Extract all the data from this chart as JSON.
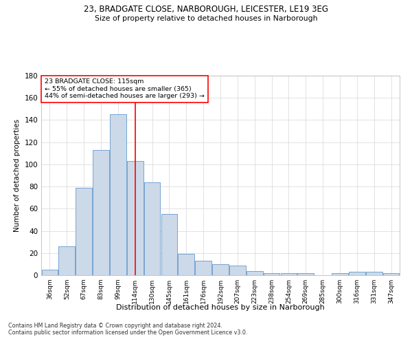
{
  "title1": "23, BRADGATE CLOSE, NARBOROUGH, LEICESTER, LE19 3EG",
  "title2": "Size of property relative to detached houses in Narborough",
  "xlabel": "Distribution of detached houses by size in Narborough",
  "ylabel": "Number of detached properties",
  "categories": [
    "36sqm",
    "52sqm",
    "67sqm",
    "83sqm",
    "99sqm",
    "114sqm",
    "130sqm",
    "145sqm",
    "161sqm",
    "176sqm",
    "192sqm",
    "207sqm",
    "223sqm",
    "238sqm",
    "254sqm",
    "269sqm",
    "285sqm",
    "300sqm",
    "316sqm",
    "331sqm",
    "347sqm"
  ],
  "values": [
    5,
    26,
    79,
    113,
    145,
    103,
    84,
    55,
    19,
    13,
    10,
    9,
    4,
    2,
    2,
    2,
    0,
    2,
    3,
    3,
    2
  ],
  "bar_color": "#ccd9e8",
  "bar_edge_color": "#6699cc",
  "red_line_x": 5,
  "red_line_label": "23 BRADGATE CLOSE: 115sqm",
  "annotation_line2": "← 55% of detached houses are smaller (365)",
  "annotation_line3": "44% of semi-detached houses are larger (293) →",
  "ylim": [
    0,
    180
  ],
  "yticks": [
    0,
    20,
    40,
    60,
    80,
    100,
    120,
    140,
    160,
    180
  ],
  "footnote1": "Contains HM Land Registry data © Crown copyright and database right 2024.",
  "footnote2": "Contains public sector information licensed under the Open Government Licence v3.0.",
  "bg_color": "#ffffff",
  "plot_bg_color": "#ffffff"
}
